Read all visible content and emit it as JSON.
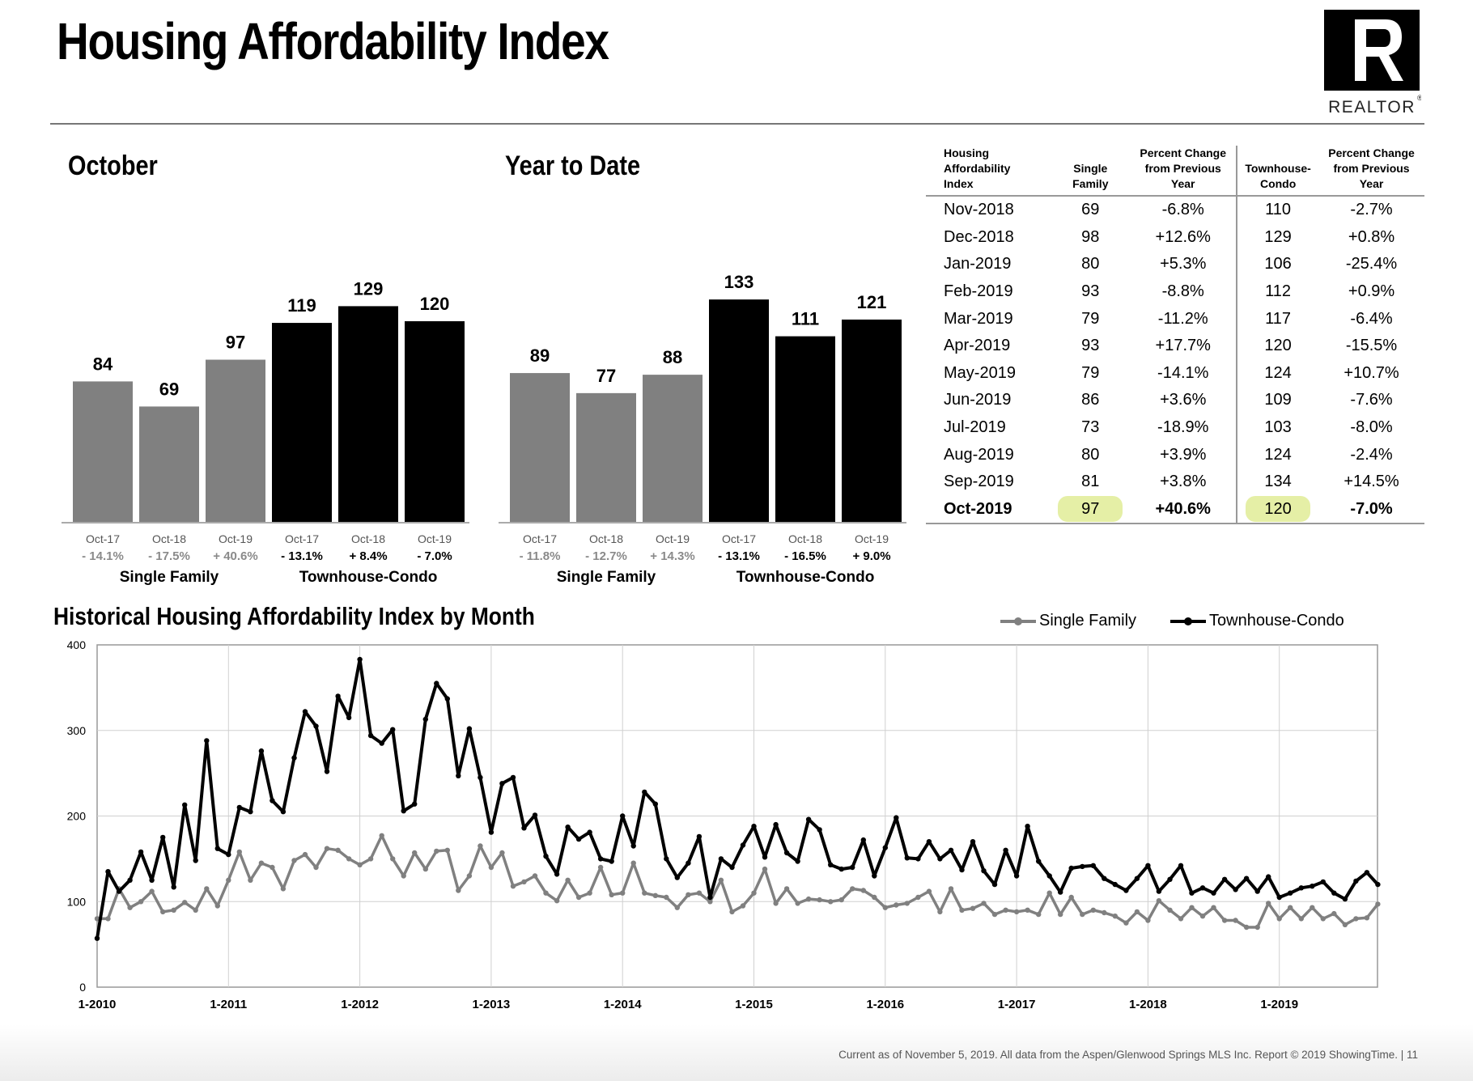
{
  "header": {
    "title": "Housing Affordability Index",
    "logo_text": "REALTOR"
  },
  "colors": {
    "single_family": "#808080",
    "townhouse_condo": "#000000",
    "highlight": "#e5efa6"
  },
  "october": {
    "title": "October",
    "chart_data": {
      "type": "bar",
      "ylim": [
        0,
        150
      ],
      "groups": [
        {
          "name": "Single Family",
          "color": "#808080",
          "bars": [
            {
              "category": "Oct-17",
              "value": 84,
              "change": "- 14.1%"
            },
            {
              "category": "Oct-18",
              "value": 69,
              "change": "- 17.5%"
            },
            {
              "category": "Oct-19",
              "value": 97,
              "change": "+ 40.6%"
            }
          ]
        },
        {
          "name": "Townhouse-Condo",
          "color": "#000000",
          "bars": [
            {
              "category": "Oct-17",
              "value": 119,
              "change": "- 13.1%"
            },
            {
              "category": "Oct-18",
              "value": 129,
              "change": "+ 8.4%"
            },
            {
              "category": "Oct-19",
              "value": 120,
              "change": "- 7.0%"
            }
          ]
        }
      ]
    }
  },
  "ytd": {
    "title": "Year to Date",
    "chart_data": {
      "type": "bar",
      "ylim": [
        0,
        150
      ],
      "groups": [
        {
          "name": "Single Family",
          "color": "#808080",
          "bars": [
            {
              "category": "Oct-17",
              "value": 89,
              "change": "- 11.8%"
            },
            {
              "category": "Oct-18",
              "value": 77,
              "change": "- 12.7%"
            },
            {
              "category": "Oct-19",
              "value": 88,
              "change": "+ 14.3%"
            }
          ]
        },
        {
          "name": "Townhouse-Condo",
          "color": "#000000",
          "bars": [
            {
              "category": "Oct-17",
              "value": 133,
              "change": "- 13.1%"
            },
            {
              "category": "Oct-18",
              "value": 111,
              "change": "- 16.5%"
            },
            {
              "category": "Oct-19",
              "value": 121,
              "change": "+ 9.0%"
            }
          ]
        }
      ]
    }
  },
  "table": {
    "headers": [
      "Housing\nAffordability\nIndex",
      "Single\nFamily",
      "Percent Change\nfrom Previous\nYear",
      "Townhouse-\nCondo",
      "Percent Change\nfrom Previous\nYear"
    ],
    "rows": [
      [
        "Nov-2018",
        "69",
        "-6.8%",
        "110",
        "-2.7%"
      ],
      [
        "Dec-2018",
        "98",
        "+12.6%",
        "129",
        "+0.8%"
      ],
      [
        "Jan-2019",
        "80",
        "+5.3%",
        "106",
        "-25.4%"
      ],
      [
        "Feb-2019",
        "93",
        "-8.8%",
        "112",
        "+0.9%"
      ],
      [
        "Mar-2019",
        "79",
        "-11.2%",
        "117",
        "-6.4%"
      ],
      [
        "Apr-2019",
        "93",
        "+17.7%",
        "120",
        "-15.5%"
      ],
      [
        "May-2019",
        "79",
        "-14.1%",
        "124",
        "+10.7%"
      ],
      [
        "Jun-2019",
        "86",
        "+3.6%",
        "109",
        "-7.6%"
      ],
      [
        "Jul-2019",
        "73",
        "-18.9%",
        "103",
        "-8.0%"
      ],
      [
        "Aug-2019",
        "80",
        "+3.9%",
        "124",
        "-2.4%"
      ],
      [
        "Sep-2019",
        "81",
        "+3.8%",
        "134",
        "+14.5%"
      ],
      [
        "Oct-2019",
        "97",
        "+40.6%",
        "120",
        "-7.0%"
      ]
    ]
  },
  "historical": {
    "title": "Historical Housing Affordability Index by Month",
    "chart_data": {
      "type": "line",
      "start": "1-2010",
      "ylim": [
        0,
        400
      ],
      "yticks": [
        0,
        100,
        200,
        300,
        400
      ],
      "xtick_labels": [
        "1-2010",
        "1-2011",
        "1-2012",
        "1-2013",
        "1-2014",
        "1-2015",
        "1-2016",
        "1-2017",
        "1-2018",
        "1-2019"
      ],
      "series": [
        {
          "name": "Single Family",
          "color": "#808080",
          "values": [
            80,
            80,
            115,
            93,
            100,
            112,
            88,
            90,
            99,
            90,
            115,
            95,
            125,
            158,
            125,
            145,
            140,
            115,
            148,
            155,
            140,
            162,
            160,
            150,
            143,
            150,
            177,
            150,
            130,
            157,
            138,
            159,
            160,
            113,
            130,
            165,
            140,
            157,
            118,
            123,
            130,
            110,
            101,
            125,
            105,
            110,
            140,
            108,
            110,
            145,
            110,
            107,
            105,
            93,
            108,
            110,
            100,
            125,
            88,
            95,
            110,
            138,
            98,
            115,
            98,
            103,
            102,
            100,
            102,
            115,
            113,
            105,
            93,
            96,
            98,
            105,
            112,
            88,
            115,
            90,
            92,
            98,
            85,
            90,
            88,
            90,
            85,
            110,
            85,
            105,
            85,
            90,
            87,
            83,
            75,
            88,
            78,
            101,
            90,
            80,
            93,
            83,
            93,
            78,
            78,
            70,
            70,
            98,
            80,
            93,
            80,
            93,
            80,
            86,
            73,
            80,
            81,
            97
          ]
        },
        {
          "name": "Townhouse-Condo",
          "color": "#000000",
          "values": [
            57,
            135,
            112,
            125,
            158,
            125,
            175,
            117,
            213,
            148,
            288,
            162,
            155,
            210,
            205,
            276,
            218,
            205,
            268,
            322,
            305,
            252,
            340,
            315,
            383,
            294,
            285,
            301,
            206,
            214,
            313,
            355,
            337,
            247,
            302,
            245,
            181,
            238,
            245,
            186,
            201,
            153,
            132,
            187,
            173,
            181,
            150,
            147,
            200,
            165,
            228,
            214,
            150,
            128,
            145,
            176,
            105,
            150,
            140,
            166,
            188,
            152,
            190,
            157,
            147,
            196,
            184,
            143,
            138,
            140,
            172,
            130,
            163,
            198,
            151,
            150,
            170,
            150,
            160,
            137,
            170,
            136,
            120,
            160,
            130,
            188,
            147,
            130,
            111,
            139,
            141,
            142,
            127,
            120,
            113,
            127,
            142,
            112,
            126,
            142,
            110,
            116,
            110,
            126,
            114,
            127,
            112,
            129,
            105,
            110,
            116,
            118,
            123,
            110,
            103,
            124,
            134,
            120
          ]
        }
      ]
    }
  },
  "footer": "Current as of November 5, 2019.  All data from the Aspen/Glenwood Springs MLS Inc. Report © 2019 ShowingTime.  |  11"
}
